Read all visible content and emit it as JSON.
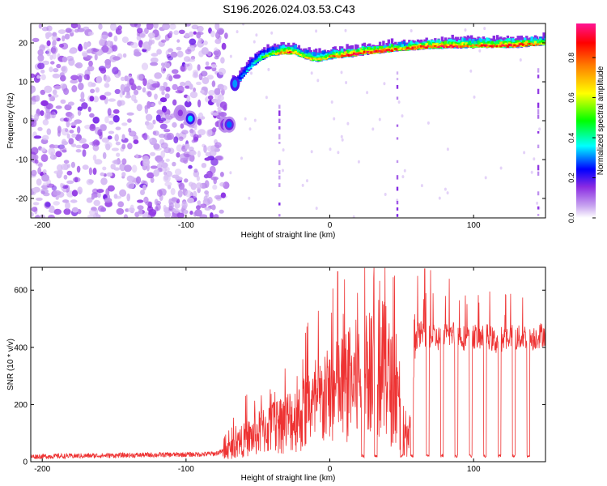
{
  "title": "S196.2026.024.03.53.C43",
  "chart_data": [
    {
      "type": "heatmap",
      "xlabel": "Height of straight line (km)",
      "ylabel": "Frequency (Hz)",
      "xlim": [
        -208,
        150
      ],
      "ylim": [
        -25,
        25
      ],
      "xticks": [
        -200,
        -100,
        0,
        100
      ],
      "xtick_labels": [
        "-200",
        "-100",
        "0",
        "100"
      ],
      "yticks": [
        -20,
        -10,
        0,
        10,
        20
      ],
      "ytick_labels": [
        "-20",
        "-10",
        "0",
        "10",
        "20"
      ],
      "colorbar": {
        "label": "Normalized spectral amplitude",
        "range": [
          0,
          0.97
        ],
        "ticks": [
          0,
          0.2,
          0.4,
          0.6,
          0.8
        ],
        "tick_labels": [
          "0.0",
          "0.2",
          "0.4",
          "0.6",
          "0.8"
        ],
        "colors": [
          "#ffffff",
          "#c9a6f0",
          "#8a2be2",
          "#0000ff",
          "#00ffff",
          "#00ff00",
          "#ffff00",
          "#ff8000",
          "#ff0000",
          "#ff1493"
        ]
      },
      "noise_region_x": [
        -208,
        -72
      ],
      "ridge_x": [
        -68,
        -64,
        -60,
        -55,
        -50,
        -45,
        -40,
        -35,
        -30,
        -25,
        -20,
        -15,
        -10,
        -5,
        0,
        5,
        10,
        15,
        20,
        25,
        30,
        35,
        40,
        45,
        50,
        55,
        60,
        65,
        70,
        75,
        80,
        85,
        90,
        95,
        100,
        105,
        110,
        115,
        120,
        125,
        130,
        135,
        140,
        145,
        150
      ],
      "ridge_freq": [
        9,
        10,
        12,
        14,
        15.5,
        16.5,
        17,
        17.2,
        17.4,
        17.3,
        16.5,
        15.8,
        15.5,
        15.8,
        16.2,
        16.4,
        16.6,
        16.8,
        17.1,
        17.3,
        17.5,
        17.7,
        17.9,
        18.1,
        18.2,
        18.4,
        18.6,
        18.7,
        18.8,
        18.9,
        18.9,
        19,
        19,
        19,
        19,
        19,
        19.1,
        19.1,
        19.1,
        19.1,
        19.2,
        19.3,
        19.4,
        19.6,
        19.8
      ],
      "ridge_amplitude": [
        0.15,
        0.2,
        0.25,
        0.3,
        0.35,
        0.45,
        0.5,
        0.65,
        0.8,
        0.6,
        0.55,
        0.6,
        0.65,
        0.55,
        0.7,
        0.75,
        0.8,
        0.85,
        0.9,
        0.8,
        0.85,
        0.9,
        0.8,
        0.75,
        0.6,
        0.75,
        0.8,
        0.85,
        0.8,
        0.9,
        0.85,
        0.9,
        0.8,
        0.7,
        0.6,
        0.85,
        0.8,
        0.75,
        0.9,
        0.85,
        0.9,
        0.8,
        0.75,
        0.6,
        0.55
      ],
      "blobs": [
        {
          "x": -97,
          "freq": 0.5,
          "amplitude": 0.35
        },
        {
          "x": -73,
          "freq": -1,
          "amplitude": 0.25
        },
        {
          "x": -70,
          "freq": -1,
          "amplitude": 0.3
        },
        {
          "x": -104,
          "freq": 2,
          "amplitude": 0.15
        }
      ]
    },
    {
      "type": "line",
      "xlabel": "Height of straight line (km)",
      "ylabel": "SNR (10 * v/v)",
      "xlim": [
        -208,
        150
      ],
      "ylim": [
        0,
        680
      ],
      "xticks": [
        -200,
        -100,
        0,
        100
      ],
      "xtick_labels": [
        "-200",
        "-100",
        "0",
        "100"
      ],
      "yticks": [
        0,
        200,
        400,
        600
      ],
      "ytick_labels": [
        "0",
        "200",
        "400",
        "600"
      ],
      "color": "#ee3333",
      "series": [
        {
          "name": "SNR",
          "x": [
            -208,
            -180,
            -150,
            -120,
            -100,
            -90,
            -80,
            -75,
            -70,
            -65,
            -60,
            -55,
            -50,
            -45,
            -40,
            -35,
            -30,
            -25,
            -20,
            -15,
            -10,
            -5,
            0,
            5,
            10,
            15,
            20,
            25,
            30,
            35,
            40,
            45,
            50,
            55,
            60,
            65,
            70,
            75,
            80,
            85,
            90,
            95,
            100,
            105,
            110,
            115,
            120,
            125,
            130,
            135,
            140,
            145,
            150
          ],
          "values": [
            18,
            20,
            22,
            24,
            25,
            26,
            28,
            35,
            55,
            80,
            100,
            115,
            130,
            150,
            160,
            175,
            190,
            200,
            210,
            235,
            250,
            280,
            300,
            320,
            340,
            360,
            380,
            400,
            420,
            440,
            400,
            300,
            200,
            80,
            440,
            450,
            440,
            430,
            440,
            450,
            440,
            430,
            440,
            430,
            440,
            420,
            430,
            440,
            430,
            440,
            430,
            440,
            450
          ]
        }
      ],
      "dips_x": [
        23,
        32,
        50,
        57,
        68,
        78,
        88,
        98,
        108,
        118,
        128,
        138
      ],
      "dip_level": 15,
      "spike_peaks": [
        {
          "x": 5.5,
          "y": 665
        },
        {
          "x": 61,
          "y": 650
        },
        {
          "x": 66,
          "y": 675
        },
        {
          "x": 70,
          "y": 670
        },
        {
          "x": 83,
          "y": 640
        }
      ]
    }
  ]
}
